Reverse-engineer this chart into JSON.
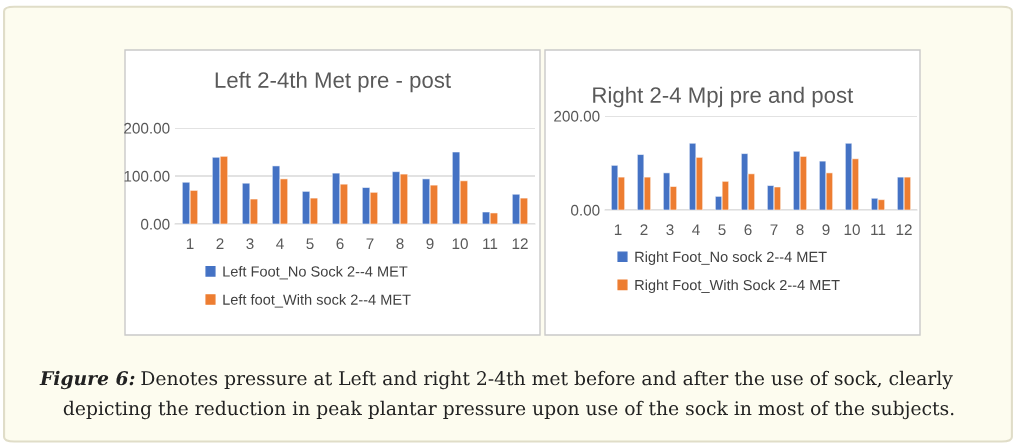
{
  "chart_data": [
    {
      "type": "bar",
      "title": "Left 2-4th Met pre - post",
      "categories": [
        "1",
        "2",
        "3",
        "4",
        "5",
        "6",
        "7",
        "8",
        "9",
        "10",
        "11",
        "12"
      ],
      "series": [
        {
          "name": "Left Foot_No Sock 2--4 MET",
          "color": "#4472c4",
          "values": [
            87,
            139,
            85,
            121,
            68,
            106,
            76,
            109,
            94,
            150,
            25,
            62
          ]
        },
        {
          "name": "Left foot_With sock 2--4 MET",
          "color": "#ed7d31",
          "values": [
            70,
            141,
            52,
            94,
            54,
            83,
            66,
            104,
            81,
            90,
            23,
            54
          ]
        }
      ],
      "ylim": [
        0,
        200
      ],
      "yticks": [
        {
          "value": 0,
          "label": "0.00"
        },
        {
          "value": 100,
          "label": "100.00"
        },
        {
          "value": 200,
          "label": "200.00"
        }
      ],
      "grid": "y",
      "legend": "bottom",
      "annotations": [
        "Figure 6:",
        "Denotes pressure at Left and right 2-4th met before and after the use of sock, clearly depicting the reduction in peak plantar pressure upon use of the sock in most of the subjects."
      ]
    },
    {
      "type": "bar",
      "title": "Right 2-4 Mpj pre and post",
      "categories": [
        "1",
        "2",
        "3",
        "4",
        "5",
        "6",
        "7",
        "8",
        "9",
        "10",
        "11",
        "12"
      ],
      "series": [
        {
          "name": "Right Foot_No sock 2--4 MET",
          "color": "#4472c4",
          "values": [
            95,
            118,
            79,
            142,
            29,
            120,
            52,
            125,
            104,
            142,
            25,
            70
          ]
        },
        {
          "name": "Right Foot_With Sock 2--4 MET",
          "color": "#ed7d31",
          "values": [
            70,
            70,
            50,
            112,
            61,
            77,
            49,
            114,
            79,
            109,
            22,
            70
          ]
        }
      ],
      "ylim": [
        0,
        200
      ],
      "yticks": [
        {
          "value": 0,
          "label": "0.00"
        },
        {
          "value": 200,
          "label": "200.00"
        }
      ],
      "grid": "y",
      "legend": "bottom"
    }
  ]
}
